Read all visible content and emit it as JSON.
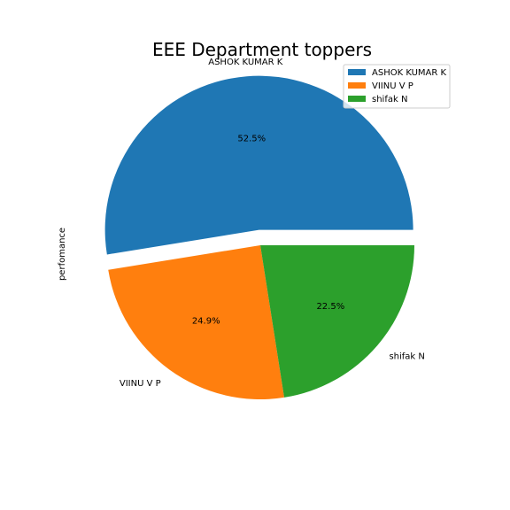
{
  "chart_data": {
    "type": "pie",
    "title": "EEE Department toppers",
    "ylabel": "perfomance",
    "labels": [
      "ASHOK KUMAR K",
      "VIINU V P",
      "shifak N"
    ],
    "values": [
      52.5,
      24.9,
      22.5
    ],
    "pct_labels": [
      "52.5%",
      "24.9%",
      "22.5%"
    ],
    "colors": [
      "#1f77b4",
      "#ff7f0e",
      "#2ca02c"
    ],
    "explode": [
      0.1,
      0,
      0
    ],
    "start_angle_deg": 0,
    "direction": "counterclockwise",
    "legend": {
      "placement": "top-right",
      "entries": [
        "ASHOK KUMAR K",
        "VIINU V P",
        "shifak N"
      ]
    }
  }
}
